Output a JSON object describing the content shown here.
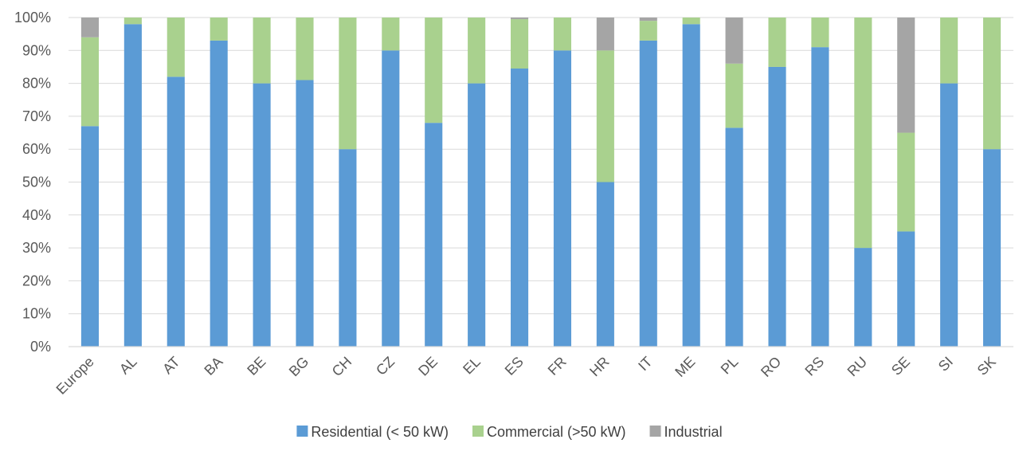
{
  "chart_data": {
    "type": "bar",
    "stacked": true,
    "normalized": true,
    "title": "",
    "xlabel": "",
    "ylabel": "",
    "ylim": [
      0,
      100
    ],
    "yticks": [
      "0%",
      "10%",
      "20%",
      "30%",
      "40%",
      "50%",
      "60%",
      "70%",
      "80%",
      "90%",
      "100%"
    ],
    "grid": true,
    "legend_position": "bottom",
    "categories": [
      "Europe",
      "AL",
      "AT",
      "BA",
      "BE",
      "BG",
      "CH",
      "CZ",
      "DE",
      "EL",
      "ES",
      "FR",
      "HR",
      "IT",
      "ME",
      "PL",
      "RO",
      "RS",
      "RU",
      "SE",
      "SI",
      "SK"
    ],
    "series": [
      {
        "name": "Residential (< 50 kW)",
        "color": "#5b9bd5",
        "values": [
          67,
          98,
          82,
          93,
          80,
          81,
          60,
          90,
          68,
          80,
          84.5,
          90,
          50,
          93,
          98,
          66.5,
          85,
          91,
          30,
          35,
          80,
          60
        ]
      },
      {
        "name": "Commercial (>50 kW)",
        "color": "#a9d18e",
        "values": [
          27,
          2,
          18,
          7,
          20,
          19,
          40,
          10,
          32,
          20,
          15,
          10,
          40,
          6,
          2,
          19.5,
          15,
          9,
          70,
          30,
          20,
          40
        ]
      },
      {
        "name": "Industrial",
        "color": "#a5a5a5",
        "values": [
          6,
          0,
          0,
          0,
          0,
          0,
          0,
          0,
          0,
          0,
          0.5,
          0,
          10,
          1,
          0,
          14,
          0,
          0,
          0,
          35,
          0,
          0
        ]
      }
    ]
  }
}
